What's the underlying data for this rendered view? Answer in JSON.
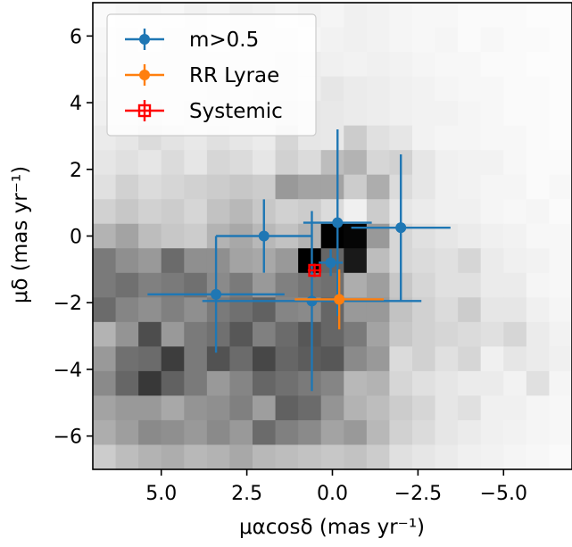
{
  "chart_data": {
    "type": "scatter",
    "title": "",
    "xlabel": "μαcosδ (mas yr⁻¹)",
    "ylabel": "μδ (mas yr⁻¹)",
    "xlim": [
      7.0,
      -7.0
    ],
    "ylim": [
      -7.0,
      7.0
    ],
    "x_inverted": true,
    "xticks": [
      5.0,
      2.5,
      0.0,
      -2.5,
      -5.0
    ],
    "xtick_labels": [
      "5.0",
      "2.5",
      "0.0",
      "−2.5",
      "−5.0"
    ],
    "yticks": [
      6,
      4,
      2,
      0,
      -2,
      -4,
      -6
    ],
    "ytick_labels": [
      "6",
      "4",
      "2",
      "0",
      "−2",
      "−4",
      "−6"
    ],
    "grid": false,
    "legend_position": "top-left",
    "background_histogram": {
      "x_range": [
        7.0,
        -7.0
      ],
      "y_range": [
        7.0,
        -7.0
      ],
      "colormap": "greys",
      "counts": [
        [
          0.02,
          0.03,
          0.04,
          0.03,
          0.05,
          0.04,
          0.06,
          0.05,
          0.04,
          0.05,
          0.04,
          0.06,
          0.05,
          0.04,
          0.03,
          0.03,
          0.02,
          0.02,
          0.02,
          0.01,
          0.01
        ],
        [
          0.03,
          0.05,
          0.04,
          0.06,
          0.05,
          0.04,
          0.07,
          0.06,
          0.05,
          0.04,
          0.05,
          0.06,
          0.05,
          0.04,
          0.03,
          0.04,
          0.02,
          0.03,
          0.02,
          0.02,
          0.01
        ],
        [
          0.04,
          0.05,
          0.06,
          0.05,
          0.07,
          0.06,
          0.05,
          0.06,
          0.08,
          0.07,
          0.06,
          0.05,
          0.06,
          0.05,
          0.04,
          0.03,
          0.03,
          0.02,
          0.02,
          0.01,
          0.01
        ],
        [
          0.05,
          0.06,
          0.05,
          0.07,
          0.06,
          0.08,
          0.07,
          0.09,
          0.08,
          0.07,
          0.1,
          0.08,
          0.07,
          0.06,
          0.05,
          0.04,
          0.03,
          0.03,
          0.02,
          0.02,
          0.01
        ],
        [
          0.06,
          0.05,
          0.08,
          0.07,
          0.09,
          0.08,
          0.1,
          0.09,
          0.11,
          0.1,
          0.09,
          0.08,
          0.07,
          0.06,
          0.05,
          0.05,
          0.04,
          0.03,
          0.02,
          0.02,
          0.01
        ],
        [
          0.08,
          0.1,
          0.14,
          0.11,
          0.09,
          0.12,
          0.1,
          0.08,
          0.16,
          0.1,
          0.09,
          0.2,
          0.12,
          0.1,
          0.05,
          0.04,
          0.04,
          0.03,
          0.03,
          0.02,
          0.01
        ],
        [
          0.1,
          0.12,
          0.1,
          0.14,
          0.1,
          0.16,
          0.14,
          0.1,
          0.18,
          0.14,
          0.26,
          0.3,
          0.16,
          0.18,
          0.1,
          0.06,
          0.05,
          0.05,
          0.03,
          0.02,
          0.02
        ],
        [
          0.12,
          0.18,
          0.14,
          0.16,
          0.18,
          0.2,
          0.22,
          0.2,
          0.4,
          0.36,
          0.36,
          0.2,
          0.32,
          0.14,
          0.1,
          0.06,
          0.05,
          0.04,
          0.04,
          0.02,
          0.03
        ],
        [
          0.18,
          0.22,
          0.18,
          0.2,
          0.16,
          0.24,
          0.28,
          0.22,
          0.18,
          0.2,
          0.14,
          0.06,
          0.2,
          0.1,
          0.08,
          0.06,
          0.06,
          0.04,
          0.03,
          0.04,
          0.02
        ],
        [
          0.3,
          0.36,
          0.26,
          0.22,
          0.2,
          0.3,
          0.34,
          0.28,
          0.24,
          0.3,
          1.0,
          0.98,
          0.4,
          0.16,
          0.12,
          0.1,
          0.08,
          0.06,
          0.05,
          0.03,
          0.03
        ],
        [
          0.52,
          0.44,
          0.4,
          0.58,
          0.44,
          0.44,
          0.36,
          0.34,
          0.4,
          1.0,
          0.6,
          0.9,
          0.26,
          0.16,
          0.14,
          0.12,
          0.16,
          0.08,
          0.06,
          0.05,
          0.03
        ],
        [
          0.52,
          0.56,
          0.5,
          0.52,
          0.56,
          0.46,
          0.52,
          0.4,
          0.5,
          0.54,
          0.56,
          0.32,
          0.38,
          0.22,
          0.16,
          0.12,
          0.12,
          0.08,
          0.08,
          0.04,
          0.03
        ],
        [
          0.58,
          0.48,
          0.44,
          0.5,
          0.44,
          0.52,
          0.56,
          0.62,
          0.48,
          0.46,
          0.6,
          0.4,
          0.4,
          0.24,
          0.18,
          0.14,
          0.2,
          0.1,
          0.1,
          0.06,
          0.04
        ],
        [
          0.3,
          0.42,
          0.7,
          0.4,
          0.52,
          0.56,
          0.66,
          0.5,
          0.58,
          0.66,
          0.6,
          0.52,
          0.36,
          0.22,
          0.18,
          0.16,
          0.14,
          0.12,
          0.16,
          0.08,
          0.05
        ],
        [
          0.4,
          0.56,
          0.58,
          0.76,
          0.52,
          0.68,
          0.58,
          0.72,
          0.6,
          0.64,
          0.66,
          0.46,
          0.4,
          0.14,
          0.18,
          0.12,
          0.16,
          0.06,
          0.1,
          0.08,
          0.06
        ],
        [
          0.46,
          0.6,
          0.78,
          0.62,
          0.52,
          0.4,
          0.48,
          0.6,
          0.56,
          0.52,
          0.48,
          0.28,
          0.3,
          0.16,
          0.12,
          0.1,
          0.08,
          0.08,
          0.05,
          0.12,
          0.04
        ],
        [
          0.36,
          0.4,
          0.4,
          0.34,
          0.42,
          0.44,
          0.5,
          0.38,
          0.62,
          0.58,
          0.42,
          0.3,
          0.26,
          0.2,
          0.16,
          0.1,
          0.12,
          0.06,
          0.06,
          0.04,
          0.03
        ],
        [
          0.32,
          0.38,
          0.46,
          0.44,
          0.4,
          0.46,
          0.4,
          0.58,
          0.5,
          0.46,
          0.36,
          0.4,
          0.28,
          0.18,
          0.14,
          0.1,
          0.08,
          0.06,
          0.05,
          0.04,
          0.03
        ],
        [
          0.2,
          0.26,
          0.3,
          0.32,
          0.28,
          0.3,
          0.34,
          0.28,
          0.26,
          0.24,
          0.22,
          0.24,
          0.2,
          0.12,
          0.1,
          0.08,
          0.06,
          0.05,
          0.04,
          0.03,
          0.02
        ]
      ]
    },
    "series": [
      {
        "name": "m>0.5",
        "color": "#1f77b4",
        "marker": "circle",
        "points": [
          {
            "x": 2.0,
            "y": 0.0,
            "xerr": 1.4,
            "yerr": 1.1
          },
          {
            "x": 3.4,
            "y": -1.75,
            "xerr": 2.0,
            "yerr": 1.75
          },
          {
            "x": 0.6,
            "y": -1.95,
            "xerr": 3.2,
            "yerr": 2.7
          },
          {
            "x": -0.15,
            "y": 0.4,
            "xerr": 1.0,
            "yerr": 2.8
          },
          {
            "x": 0.05,
            "y": -0.8,
            "xerr": 0.35,
            "yerr": 0.4
          },
          {
            "x": -2.0,
            "y": 0.25,
            "xerr": 1.45,
            "yerr": 2.2
          }
        ]
      },
      {
        "name": "RR Lyrae",
        "color": "#ff7f0e",
        "marker": "circle",
        "points": [
          {
            "x": -0.2,
            "y": -1.9,
            "xerr": 1.3,
            "yerr": 0.9
          }
        ]
      },
      {
        "name": "Systemic",
        "color": "#ff0000",
        "marker": "open-square",
        "points": [
          {
            "x": 0.52,
            "y": -1.03,
            "xerr": 0.2,
            "yerr": 0.2
          }
        ]
      }
    ]
  }
}
